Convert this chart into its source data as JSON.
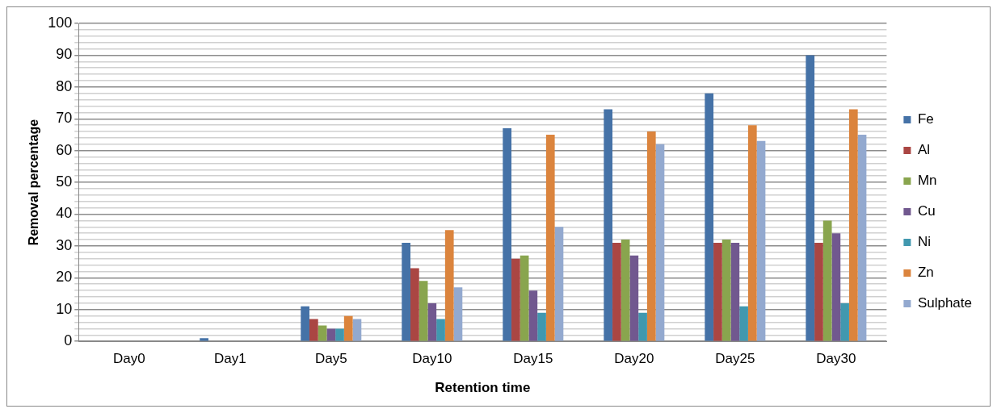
{
  "chart_data": {
    "type": "bar",
    "xlabel": "Retention time",
    "ylabel": "Removal percentage",
    "categories": [
      "Day0",
      "Day1",
      "Day5",
      "Day10",
      "Day15",
      "Day20",
      "Day25",
      "Day30"
    ],
    "series": [
      {
        "name": "Fe",
        "color": "#4572a7",
        "values": [
          0,
          1,
          11,
          31,
          67,
          73,
          78,
          90
        ]
      },
      {
        "name": "Al",
        "color": "#aa4643",
        "values": [
          0,
          0,
          7,
          23,
          26,
          31,
          31,
          31
        ]
      },
      {
        "name": "Mn",
        "color": "#89a54e",
        "values": [
          0,
          0,
          5,
          19,
          27,
          32,
          32,
          38
        ]
      },
      {
        "name": "Cu",
        "color": "#71588f",
        "values": [
          0,
          0,
          4,
          12,
          16,
          27,
          31,
          34
        ]
      },
      {
        "name": "Ni",
        "color": "#4198af",
        "values": [
          0,
          0,
          4,
          7,
          9,
          9,
          11,
          12
        ]
      },
      {
        "name": "Zn",
        "color": "#db843d",
        "values": [
          0,
          0,
          8,
          35,
          65,
          66,
          68,
          73
        ]
      },
      {
        "name": "Sulphate",
        "color": "#93a9cf",
        "values": [
          0,
          0,
          7,
          17,
          36,
          62,
          63,
          65
        ]
      }
    ],
    "ylim": [
      0,
      100
    ],
    "yticks": [
      0,
      {
        "value": 2,
        "label": null
      },
      {
        "value": 4,
        "label": null
      },
      {
        "value": 6,
        "label": null
      },
      {
        "value": 8,
        "label": null
      },
      10,
      {
        "value": 12,
        "label": null
      },
      {
        "value": 14,
        "label": null
      },
      {
        "value": 16,
        "label": null
      },
      {
        "value": 18,
        "label": null
      },
      20,
      {
        "value": 22,
        "label": null
      },
      {
        "value": 24,
        "label": null
      },
      {
        "value": 26,
        "label": null
      },
      {
        "value": 28,
        "label": null
      },
      30,
      {
        "value": 32,
        "label": null
      },
      {
        "value": 34,
        "label": null
      },
      {
        "value": 36,
        "label": null
      },
      {
        "value": 38,
        "label": null
      },
      40,
      {
        "value": 42,
        "label": null
      },
      {
        "value": 44,
        "label": null
      },
      {
        "value": 46,
        "label": null
      },
      {
        "value": 48,
        "label": null
      },
      50,
      {
        "value": 52,
        "label": null
      },
      {
        "value": 54,
        "label": null
      },
      {
        "value": 56,
        "label": null
      },
      {
        "value": 58,
        "label": null
      },
      60,
      {
        "value": 62,
        "label": null
      },
      {
        "value": 64,
        "label": null
      },
      {
        "value": 66,
        "label": null
      },
      {
        "value": 68,
        "label": null
      },
      70,
      {
        "value": 72,
        "label": null
      },
      {
        "value": 74,
        "label": null
      },
      {
        "value": 76,
        "label": null
      },
      {
        "value": 78,
        "label": null
      },
      80,
      {
        "value": 82,
        "label": null
      },
      {
        "value": 84,
        "label": null
      },
      {
        "value": 86,
        "label": null
      },
      {
        "value": 88,
        "label": null
      },
      90,
      {
        "value": 92,
        "label": null
      },
      {
        "value": 94,
        "label": null
      },
      {
        "value": 96,
        "label": null
      },
      {
        "value": 98,
        "label": null
      },
      100
    ],
    "grid": "y",
    "legend": "right"
  }
}
